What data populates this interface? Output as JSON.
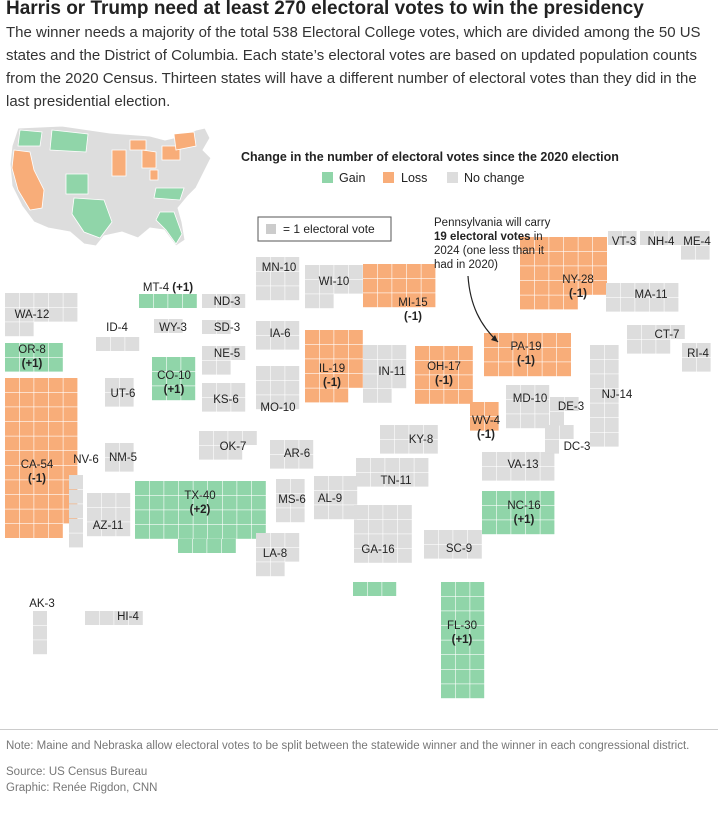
{
  "title": "Harris or Trump need at least 270 electoral votes to win the presidency",
  "description": "The winner needs a majority of the total 538 Electoral College votes, which are divided among the 50 US states and the District of Columbia. Each state’s electoral votes are based on updated population counts from the 2020 Census. Thirteen states will have a different number of electoral votes than they did in the last presidential election.",
  "colors": {
    "gain": "#90d5a9",
    "loss": "#f8ad79",
    "none": "#dddddd"
  },
  "legend": {
    "title": "Change in the number of electoral votes since the 2020 election",
    "gain": "Gain",
    "loss": "Loss",
    "none": "No change",
    "unit": "= 1 electoral vote"
  },
  "annotation": {
    "line1": "Pennsylvania will carry",
    "line2": "19 electoral votes",
    "line2_suffix": " in",
    "line3": "2024 (one less than it",
    "line4": "had in 2020)"
  },
  "states": [
    {
      "id": "WA",
      "label": "WA-12",
      "change": "",
      "status": "none"
    },
    {
      "id": "OR",
      "label": "OR-8",
      "change": "(+1)",
      "status": "gain"
    },
    {
      "id": "CA",
      "label": "CA-54",
      "change": "(-1)",
      "status": "loss"
    },
    {
      "id": "ID",
      "label": "ID-4",
      "change": "",
      "status": "none"
    },
    {
      "id": "NV",
      "label": "NV-6",
      "change": "",
      "status": "none"
    },
    {
      "id": "UT",
      "label": "UT-6",
      "change": "",
      "status": "none"
    },
    {
      "id": "AZ",
      "label": "AZ-11",
      "change": "",
      "status": "none"
    },
    {
      "id": "MT",
      "label": "MT-4",
      "change": "(+1)",
      "status": "gain"
    },
    {
      "id": "WY",
      "label": "WY-3",
      "change": "",
      "status": "none"
    },
    {
      "id": "CO",
      "label": "CO-10",
      "change": "(+1)",
      "status": "gain"
    },
    {
      "id": "NM",
      "label": "NM-5",
      "change": "",
      "status": "none"
    },
    {
      "id": "ND",
      "label": "ND-3",
      "change": "",
      "status": "none"
    },
    {
      "id": "SD",
      "label": "SD-3",
      "change": "",
      "status": "none"
    },
    {
      "id": "NE",
      "label": "NE-5",
      "change": "",
      "status": "none"
    },
    {
      "id": "KS",
      "label": "KS-6",
      "change": "",
      "status": "none"
    },
    {
      "id": "OK",
      "label": "OK-7",
      "change": "",
      "status": "none"
    },
    {
      "id": "TX",
      "label": "TX-40",
      "change": "(+2)",
      "status": "gain"
    },
    {
      "id": "MN",
      "label": "MN-10",
      "change": "",
      "status": "none"
    },
    {
      "id": "IA",
      "label": "IA-6",
      "change": "",
      "status": "none"
    },
    {
      "id": "MO",
      "label": "MO-10",
      "change": "",
      "status": "none"
    },
    {
      "id": "AR",
      "label": "AR-6",
      "change": "",
      "status": "none"
    },
    {
      "id": "LA",
      "label": "LA-8",
      "change": "",
      "status": "none"
    },
    {
      "id": "WI",
      "label": "WI-10",
      "change": "",
      "status": "none"
    },
    {
      "id": "IL",
      "label": "IL-19",
      "change": "(-1)",
      "status": "loss"
    },
    {
      "id": "MS",
      "label": "MS-6",
      "change": "",
      "status": "none"
    },
    {
      "id": "AL",
      "label": "AL-9",
      "change": "",
      "status": "none"
    },
    {
      "id": "MI",
      "label": "MI-15",
      "change": "(-1)",
      "status": "loss"
    },
    {
      "id": "IN",
      "label": "IN-11",
      "change": "",
      "status": "none"
    },
    {
      "id": "KY",
      "label": "KY-8",
      "change": "",
      "status": "none"
    },
    {
      "id": "TN",
      "label": "TN-11",
      "change": "",
      "status": "none"
    },
    {
      "id": "GA",
      "label": "GA-16",
      "change": "",
      "status": "none"
    },
    {
      "id": "FL",
      "label": "FL-30",
      "change": "(+1)",
      "status": "gain"
    },
    {
      "id": "OH",
      "label": "OH-17",
      "change": "(-1)",
      "status": "loss"
    },
    {
      "id": "WV",
      "label": "WV-4",
      "change": "(-1)",
      "status": "loss"
    },
    {
      "id": "VA",
      "label": "VA-13",
      "change": "",
      "status": "none"
    },
    {
      "id": "NC",
      "label": "NC-16",
      "change": "(+1)",
      "status": "gain"
    },
    {
      "id": "SC",
      "label": "SC-9",
      "change": "",
      "status": "none"
    },
    {
      "id": "PA",
      "label": "PA-19",
      "change": "(-1)",
      "status": "loss"
    },
    {
      "id": "NY",
      "label": "NY-28",
      "change": "(-1)",
      "status": "loss"
    },
    {
      "id": "VT",
      "label": "VT-3",
      "change": "",
      "status": "none"
    },
    {
      "id": "NH",
      "label": "NH-4",
      "change": "",
      "status": "none"
    },
    {
      "id": "ME",
      "label": "ME-4",
      "change": "",
      "status": "none"
    },
    {
      "id": "MA",
      "label": "MA-11",
      "change": "",
      "status": "none"
    },
    {
      "id": "CT",
      "label": "CT-7",
      "change": "",
      "status": "none"
    },
    {
      "id": "RI",
      "label": "RI-4",
      "change": "",
      "status": "none"
    },
    {
      "id": "NJ",
      "label": "NJ-14",
      "change": "",
      "status": "none"
    },
    {
      "id": "DE",
      "label": "DE-3",
      "change": "",
      "status": "none"
    },
    {
      "id": "MD",
      "label": "MD-10",
      "change": "",
      "status": "none"
    },
    {
      "id": "DC",
      "label": "DC-3",
      "change": "",
      "status": "none"
    },
    {
      "id": "AK",
      "label": "AK-3",
      "change": "",
      "status": "none"
    },
    {
      "id": "HI",
      "label": "HI-4",
      "change": "",
      "status": "none"
    }
  ],
  "footer": {
    "note": "Note: Maine and Nebraska allow electoral votes to be split between the statewide winner and the winner in each congressional district.",
    "source": "Source: US Census Bureau",
    "credit": "Graphic: Renée Rigdon, CNN"
  }
}
